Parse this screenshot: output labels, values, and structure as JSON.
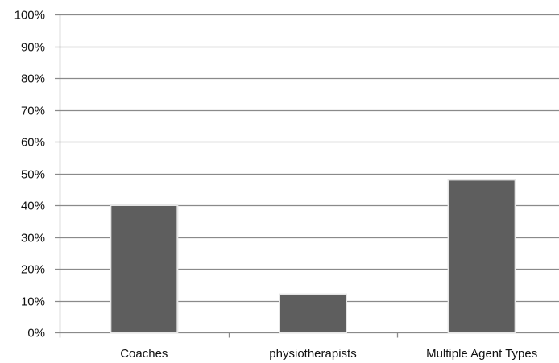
{
  "chart_data": {
    "type": "bar",
    "categories": [
      "Coaches",
      "physiotherapists",
      "Multiple Agent Types"
    ],
    "values": [
      40,
      12,
      48
    ],
    "y_unit": "%",
    "ylim": [
      0,
      100
    ],
    "y_ticks": [
      "0%",
      "10%",
      "20%",
      "30%",
      "40%",
      "50%",
      "60%",
      "70%",
      "80%",
      "90%",
      "100%"
    ],
    "title": "",
    "xlabel": "",
    "ylabel": "",
    "grid": true,
    "legend": "none",
    "colors": {
      "bar": "#5e5e5e",
      "bar_edge": "#e6e6e6",
      "grid": "#8a8a8a",
      "axis": "#8a8a8a",
      "text": "#111111"
    }
  }
}
